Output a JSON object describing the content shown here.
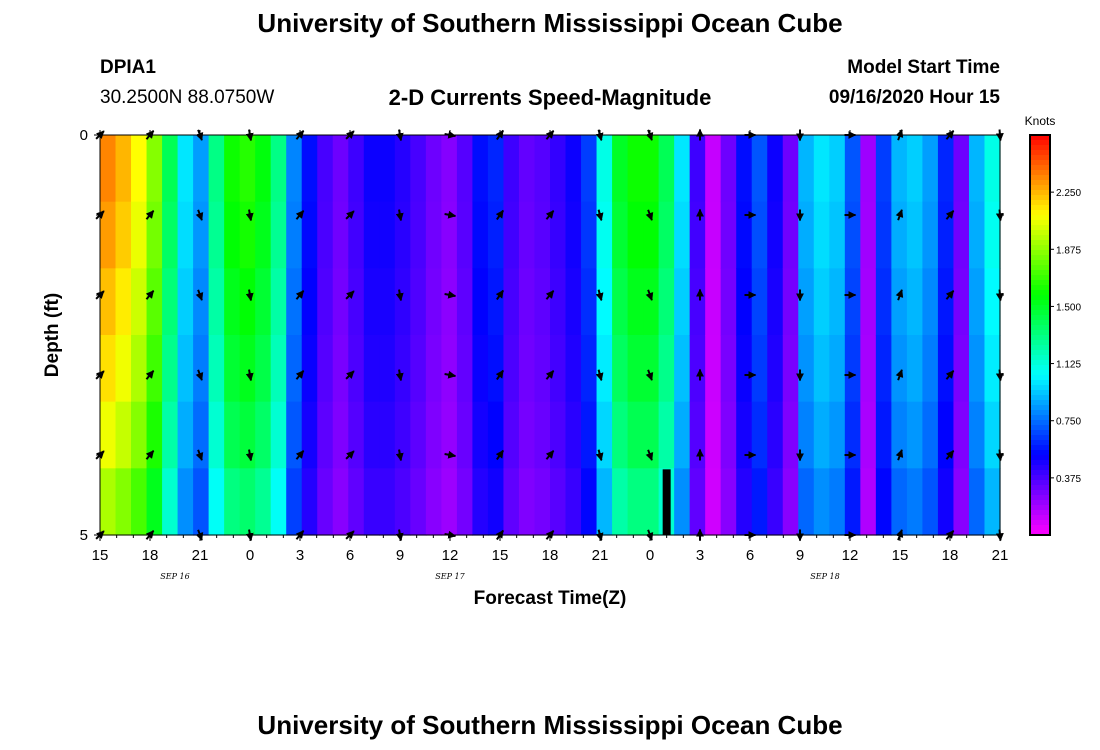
{
  "header": {
    "title": "University of Southern Mississippi Ocean Cube",
    "station_id": "DPIA1",
    "coordinates": "30.2500N 88.0750W",
    "chart_title": "2-D Currents Speed-Magnitude",
    "model_start_label": "Model Start Time",
    "model_start_value": "09/16/2020 Hour 15",
    "footer_title": "University of Southern Mississippi Ocean Cube"
  },
  "chart_data": {
    "type": "heatmap",
    "title": "2-D Currents Speed-Magnitude",
    "xlabel": "Forecast Time(Z)",
    "ylabel": "Depth (ft)",
    "xlim": [
      0,
      54
    ],
    "ylim": [
      0,
      5
    ],
    "y_tick_labels": [
      "0",
      "5"
    ],
    "x_tick_labels": [
      "15",
      "18",
      "21",
      "0",
      "3",
      "6",
      "9",
      "12",
      "15",
      "18",
      "21",
      "0",
      "3",
      "6",
      "9",
      "12",
      "15",
      "18",
      "21"
    ],
    "date_labels": [
      {
        "text": "SEP 16",
        "hour": 4.5
      },
      {
        "text": "SEP 17",
        "hour": 21
      },
      {
        "text": "SEP 18",
        "hour": 43.5
      }
    ],
    "colorbar": {
      "unit": "Knots",
      "min": 0,
      "max": 2.625,
      "ticks": [
        "2.250",
        "1.875",
        "1.500",
        "1.125",
        "0.750",
        "0.375"
      ],
      "tick_values": [
        2.25,
        1.875,
        1.5,
        1.125,
        0.75,
        0.375
      ]
    },
    "speed_profile_knots": [
      2.35,
      2.25,
      2.1,
      1.85,
      1.4,
      1.0,
      0.85,
      1.3,
      1.6,
      1.65,
      1.55,
      1.3,
      0.8,
      0.55,
      0.38,
      0.3,
      0.4,
      0.5,
      0.5,
      0.45,
      0.38,
      0.3,
      0.25,
      0.35,
      0.55,
      0.6,
      0.4,
      0.32,
      0.35,
      0.42,
      0.5,
      0.65,
      1.1,
      1.5,
      1.6,
      1.6,
      1.4,
      1.0,
      0.4,
      0.12,
      0.3,
      0.55,
      0.7,
      0.5,
      0.3,
      0.9,
      1.0,
      0.95,
      0.7,
      0.2,
      0.65,
      0.9,
      0.95,
      0.85,
      0.6,
      0.3,
      0.9,
      1.1
    ],
    "depth_factors": [
      1.0,
      0.98,
      0.95,
      0.92,
      0.88,
      0.82
    ],
    "missing_cells": [
      {
        "hour": 34,
        "depth_row": 5
      }
    ],
    "vector_hours": [
      0,
      3,
      6,
      9,
      12,
      15,
      18,
      21,
      24,
      27,
      30,
      33,
      36,
      39,
      42,
      45,
      48,
      51,
      54
    ],
    "vector_depth_rows": [
      0,
      1,
      2,
      3,
      4,
      5
    ],
    "vector_directions_deg": [
      45,
      40,
      160,
      170,
      40,
      45,
      170,
      100,
      35,
      40,
      165,
      160,
      0,
      90,
      180,
      90,
      20,
      40,
      175
    ]
  }
}
